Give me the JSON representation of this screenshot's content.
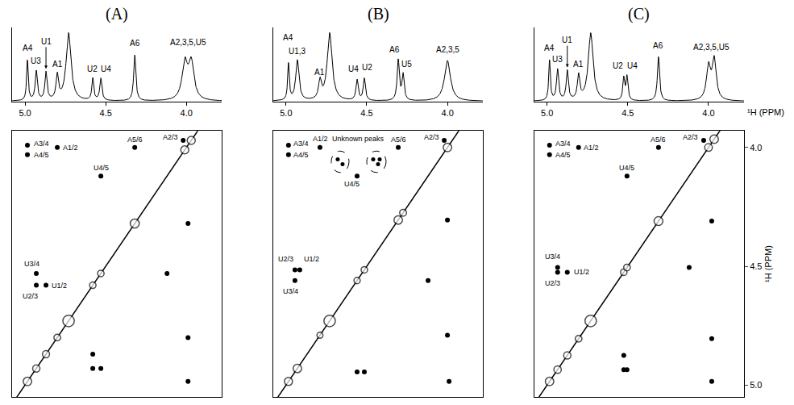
{
  "chart_data": [
    {
      "type": "line",
      "title": "(A)",
      "xlim": [
        5.08,
        3.78
      ],
      "xticks": [
        {
          "value": 5,
          "label": "5.0"
        },
        {
          "value": 4.5,
          "label": "4.5"
        },
        {
          "value": 4,
          "label": "4.0"
        }
      ],
      "ylim": [
        0,
        1
      ],
      "tick_labels": "x",
      "color": "#000000",
      "peaks": [
        {
          "x": 4.985,
          "height": 0.55,
          "width": 0.006
        },
        {
          "x": 4.93,
          "height": 0.4,
          "width": 0.008
        },
        {
          "x": 4.87,
          "height": 0.38,
          "width": 0.008
        },
        {
          "x": 4.8,
          "height": 0.33,
          "width": 0.009
        },
        {
          "x": 4.73,
          "height": 0.92,
          "width": 0.018
        },
        {
          "x": 4.58,
          "height": 0.3,
          "width": 0.007
        },
        {
          "x": 4.53,
          "height": 0.3,
          "width": 0.008
        },
        {
          "x": 4.32,
          "height": 0.62,
          "width": 0.008
        },
        {
          "x": 4.01,
          "height": 0.5,
          "width": 0.02
        },
        {
          "x": 3.97,
          "height": 0.5,
          "width": 0.02
        }
      ],
      "annotations": [
        {
          "text": "A4",
          "x": 4.985,
          "y": 0.64
        },
        {
          "text": "U3",
          "x": 4.935,
          "y": 0.47
        },
        {
          "text": "U1",
          "x": 4.87,
          "y": 0.75
        },
        {
          "text": "A1",
          "x": 4.8,
          "y": 0.42
        },
        {
          "text": "U2",
          "x": 4.585,
          "y": 0.36
        },
        {
          "text": "U4",
          "x": 4.5,
          "y": 0.36
        },
        {
          "text": "A6",
          "x": 4.32,
          "y": 0.7
        },
        {
          "text": "A2,3,5,U5",
          "x": 3.99,
          "y": 0.72
        }
      ]
    },
    {
      "type": "scatter",
      "xlim": [
        5.08,
        3.78
      ],
      "ylim": [
        5.05,
        3.93
      ],
      "tick_labels": false,
      "color": "#000000",
      "cross_peaks": [
        {
          "x": 4.985,
          "y": 3.99,
          "label": "A3/4",
          "label_x": 4.9,
          "label_y": 3.985
        },
        {
          "x": 4.985,
          "y": 4.03,
          "label": "A4/5",
          "label_x": 4.9,
          "label_y": 4.03
        },
        {
          "x": 4.8,
          "y": 4.0,
          "label": "A1/2",
          "label_x": 4.72,
          "label_y": 4.0
        },
        {
          "x": 4.53,
          "y": 4.12,
          "label": "U4/5",
          "label_x": 4.53,
          "label_y": 4.085
        },
        {
          "x": 4.32,
          "y": 4.0,
          "label": "A5/6",
          "label_x": 4.32,
          "label_y": 3.965
        },
        {
          "x": 4.02,
          "y": 3.97,
          "label": "A2/3",
          "label_x": 4.1,
          "label_y": 3.955
        },
        {
          "x": 4.93,
          "y": 4.58,
          "label": "U2/3",
          "label_x": 4.97,
          "label_y": 4.625
        },
        {
          "x": 4.87,
          "y": 4.58,
          "label": "U1/2",
          "label_x": 4.79,
          "label_y": 4.58
        },
        {
          "x": 4.93,
          "y": 4.53,
          "label": "U3/4",
          "label_x": 4.96,
          "label_y": 4.49
        },
        {
          "x": 3.99,
          "y": 4.985,
          "label": null
        },
        {
          "x": 3.99,
          "y": 4.8,
          "label": null
        },
        {
          "x": 3.99,
          "y": 4.32,
          "label": null
        },
        {
          "x": 4.12,
          "y": 4.53,
          "label": null
        },
        {
          "x": 4.58,
          "y": 4.93,
          "label": null
        },
        {
          "x": 4.58,
          "y": 4.87,
          "label": null
        },
        {
          "x": 4.53,
          "y": 4.93,
          "label": null
        }
      ]
    },
    {
      "type": "line",
      "title": "(B)",
      "xlim": [
        5.08,
        3.78
      ],
      "xticks": [
        {
          "value": 5,
          "label": "5.0"
        },
        {
          "value": 4.5,
          "label": "4.5"
        },
        {
          "value": 4,
          "label": "4.0"
        }
      ],
      "ylim": [
        0,
        1
      ],
      "tick_labels": "x",
      "color": "#000000",
      "peaks": [
        {
          "x": 4.985,
          "height": 0.5,
          "width": 0.006
        },
        {
          "x": 4.93,
          "height": 0.55,
          "width": 0.012
        },
        {
          "x": 4.79,
          "height": 0.25,
          "width": 0.01
        },
        {
          "x": 4.73,
          "height": 0.92,
          "width": 0.018
        },
        {
          "x": 4.56,
          "height": 0.28,
          "width": 0.008
        },
        {
          "x": 4.515,
          "height": 0.3,
          "width": 0.008
        },
        {
          "x": 4.305,
          "height": 0.55,
          "width": 0.008
        },
        {
          "x": 4.275,
          "height": 0.35,
          "width": 0.008
        },
        {
          "x": 4.0,
          "height": 0.55,
          "width": 0.022
        }
      ],
      "annotations": [
        {
          "text": "A4",
          "x": 4.985,
          "y": 0.78
        },
        {
          "text": "U1,3",
          "x": 4.93,
          "y": 0.6
        },
        {
          "text": "A1",
          "x": 4.79,
          "y": 0.31
        },
        {
          "text": "U4",
          "x": 4.58,
          "y": 0.36
        },
        {
          "text": "U2",
          "x": 4.495,
          "y": 0.38
        },
        {
          "text": "A6",
          "x": 4.33,
          "y": 0.62
        },
        {
          "text": "U5",
          "x": 4.255,
          "y": 0.42
        },
        {
          "text": "A2,3,5",
          "x": 4.0,
          "y": 0.62
        }
      ]
    },
    {
      "type": "scatter",
      "xlim": [
        5.08,
        3.78
      ],
      "ylim": [
        5.05,
        3.93
      ],
      "tick_labels": false,
      "color": "#000000",
      "cross_peaks": [
        {
          "x": 4.985,
          "y": 3.99,
          "label": "A3/4",
          "label_x": 4.905,
          "label_y": 3.985
        },
        {
          "x": 4.985,
          "y": 4.03,
          "label": "A4/5",
          "label_x": 4.905,
          "label_y": 4.03
        },
        {
          "x": 4.79,
          "y": 4.0,
          "label": "A1/2",
          "label_x": 4.785,
          "label_y": 3.962
        },
        {
          "x": 4.56,
          "y": 4.12,
          "label": "U4/5",
          "label_x": 4.59,
          "label_y": 4.155
        },
        {
          "x": 4.305,
          "y": 4.0,
          "label": "A5/6",
          "label_x": 4.305,
          "label_y": 3.965
        },
        {
          "x": 4.02,
          "y": 3.97,
          "label": "A2/3",
          "label_x": 4.1,
          "label_y": 3.955
        },
        {
          "x": 4.945,
          "y": 4.515,
          "label": "U2/3",
          "label_x": 5.0,
          "label_y": 4.47
        },
        {
          "x": 4.915,
          "y": 4.515,
          "label": "U1/2",
          "label_x": 4.84,
          "label_y": 4.47
        },
        {
          "x": 4.945,
          "y": 4.56,
          "label": "U3/4",
          "label_x": 4.97,
          "label_y": 4.605
        },
        {
          "x": 3.99,
          "y": 4.985,
          "label": null
        },
        {
          "x": 4.0,
          "y": 4.79,
          "label": null
        },
        {
          "x": 4.0,
          "y": 4.305,
          "label": null
        },
        {
          "x": 4.12,
          "y": 4.56,
          "label": null
        },
        {
          "x": 4.515,
          "y": 4.945,
          "label": null
        },
        {
          "x": 4.56,
          "y": 4.945,
          "label": null
        }
      ],
      "unknown_peaks": {
        "text": "Unknown peaks",
        "groups": [
          [
            {
              "x": 4.68,
              "y": 4.05
            },
            {
              "x": 4.65,
              "y": 4.07
            }
          ],
          [
            {
              "x": 4.46,
              "y": 4.05
            },
            {
              "x": 4.43,
              "y": 4.07
            },
            {
              "x": 4.42,
              "y": 4.05
            }
          ]
        ]
      }
    },
    {
      "type": "line",
      "title": "(C)",
      "xlim": [
        5.08,
        3.78
      ],
      "xticks": [
        {
          "value": 5,
          "label": "5.0"
        },
        {
          "value": 4.5,
          "label": "4.5"
        },
        {
          "value": 4,
          "label": "4.0"
        }
      ],
      "xlabel": "¹H (PPM)",
      "ylim": [
        0,
        1
      ],
      "tick_labels": "x",
      "color": "#000000",
      "peaks": [
        {
          "x": 4.985,
          "height": 0.55,
          "width": 0.006
        },
        {
          "x": 4.935,
          "height": 0.42,
          "width": 0.008
        },
        {
          "x": 4.875,
          "height": 0.4,
          "width": 0.008
        },
        {
          "x": 4.805,
          "height": 0.33,
          "width": 0.009
        },
        {
          "x": 4.73,
          "height": 0.92,
          "width": 0.018
        },
        {
          "x": 4.525,
          "height": 0.3,
          "width": 0.007
        },
        {
          "x": 4.505,
          "height": 0.32,
          "width": 0.007
        },
        {
          "x": 4.31,
          "height": 0.6,
          "width": 0.008
        },
        {
          "x": 4.0,
          "height": 0.45,
          "width": 0.015
        },
        {
          "x": 3.965,
          "height": 0.55,
          "width": 0.015
        }
      ],
      "annotations": [
        {
          "text": "A4",
          "x": 4.985,
          "y": 0.64
        },
        {
          "text": "U3",
          "x": 4.935,
          "y": 0.49
        },
        {
          "text": "U1",
          "x": 4.875,
          "y": 0.77
        },
        {
          "text": "A1",
          "x": 4.805,
          "y": 0.42
        },
        {
          "text": "U2",
          "x": 4.56,
          "y": 0.4
        },
        {
          "text": "U4",
          "x": 4.47,
          "y": 0.4
        },
        {
          "text": "A6",
          "x": 4.31,
          "y": 0.67
        },
        {
          "text": "A2,3,5,U5",
          "x": 3.98,
          "y": 0.65
        }
      ]
    },
    {
      "type": "scatter",
      "xlim": [
        5.08,
        3.78
      ],
      "ylim": [
        5.05,
        3.93
      ],
      "yticks": [
        {
          "value": 4,
          "label": "4.0"
        },
        {
          "value": 4.5,
          "label": "4.5"
        },
        {
          "value": 5,
          "label": "5.0"
        }
      ],
      "ylabel": "¹H (PPM)",
      "tick_labels": "y",
      "color": "#000000",
      "cross_peaks": [
        {
          "x": 4.985,
          "y": 3.99,
          "label": "A3/4",
          "label_x": 4.9,
          "label_y": 3.985
        },
        {
          "x": 4.985,
          "y": 4.03,
          "label": "A4/5",
          "label_x": 4.9,
          "label_y": 4.03
        },
        {
          "x": 4.805,
          "y": 4.0,
          "label": "A1/2",
          "label_x": 4.725,
          "label_y": 4.0
        },
        {
          "x": 4.505,
          "y": 4.12,
          "label": "U4/5",
          "label_x": 4.505,
          "label_y": 4.085
        },
        {
          "x": 4.31,
          "y": 4.0,
          "label": "A5/6",
          "label_x": 4.31,
          "label_y": 3.965
        },
        {
          "x": 4.03,
          "y": 3.97,
          "label": "A2/3",
          "label_x": 4.11,
          "label_y": 3.955
        },
        {
          "x": 4.935,
          "y": 4.525,
          "label": "U2/3",
          "label_x": 4.965,
          "label_y": 4.57
        },
        {
          "x": 4.875,
          "y": 4.525,
          "label": "U1/2",
          "label_x": 4.785,
          "label_y": 4.525
        },
        {
          "x": 4.935,
          "y": 4.505,
          "label": "U3/4",
          "label_x": 4.965,
          "label_y": 4.46
        },
        {
          "x": 3.98,
          "y": 4.985,
          "label": null
        },
        {
          "x": 3.98,
          "y": 4.805,
          "label": null
        },
        {
          "x": 3.98,
          "y": 4.31,
          "label": null
        },
        {
          "x": 4.12,
          "y": 4.505,
          "label": null
        },
        {
          "x": 4.525,
          "y": 4.935,
          "label": null
        },
        {
          "x": 4.525,
          "y": 4.875,
          "label": null
        },
        {
          "x": 4.505,
          "y": 4.935,
          "label": null
        }
      ]
    }
  ]
}
